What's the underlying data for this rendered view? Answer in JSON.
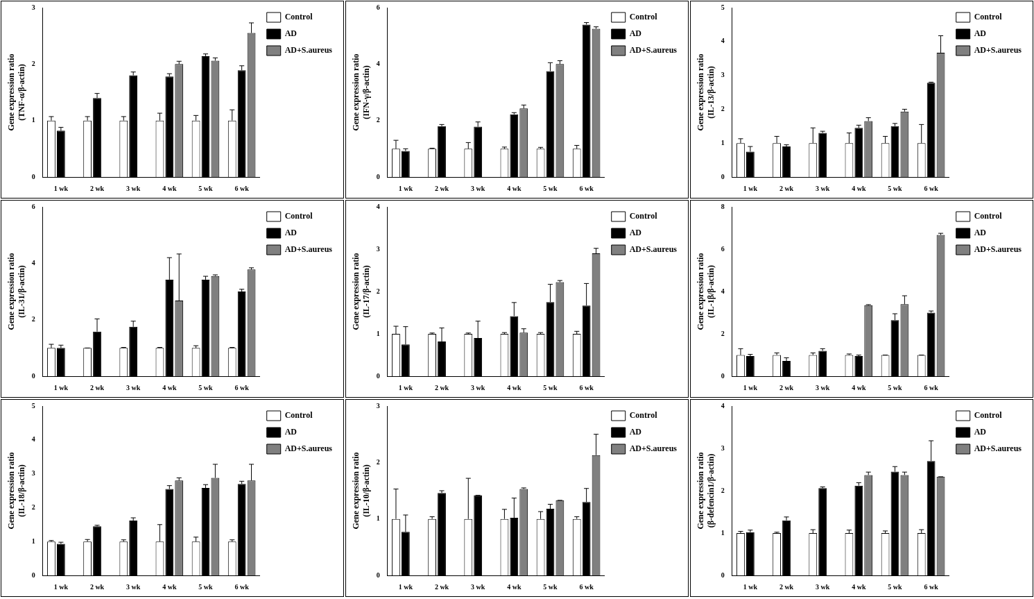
{
  "chart_data": [
    {
      "type": "bar",
      "y_label": [
        "Gene expression ratio",
        "(TNF-α/β-actin)"
      ],
      "categories": [
        "1 wk",
        "2 wk",
        "3 wk",
        "4 wk",
        "5 wk",
        "6 wk"
      ],
      "series": [
        {
          "name": "Control",
          "color": "#ffffff",
          "values": [
            1,
            1,
            1,
            1,
            1,
            1
          ],
          "errors": [
            0.07,
            0.07,
            0.07,
            0.13,
            0.09,
            0.19
          ]
        },
        {
          "name": "AD",
          "color": "#000000",
          "values": [
            0.82,
            1.4,
            1.8,
            1.78,
            2.14,
            1.89
          ],
          "errors": [
            0.06,
            0.08,
            0.06,
            0.05,
            0.04,
            0.08
          ]
        },
        {
          "name": "AD+S.aureus",
          "color": "#808080",
          "values": [
            null,
            null,
            null,
            2.0,
            2.06,
            2.55
          ],
          "errors": [
            null,
            null,
            null,
            0.05,
            0.05,
            0.18
          ]
        }
      ],
      "ylim": [
        0,
        3
      ],
      "yticks": [
        0,
        1,
        2,
        3
      ],
      "legend": "upper right",
      "grid": false
    },
    {
      "type": "bar",
      "y_label": [
        "Gene expression ratio",
        "(IFN-γ/β-actin)"
      ],
      "categories": [
        "1 wk",
        "2 wk",
        "3 wk",
        "4 wk",
        "5 wk",
        "6 wk"
      ],
      "series": [
        {
          "name": "Control",
          "color": "#ffffff",
          "values": [
            1,
            1,
            1,
            1,
            1,
            1
          ],
          "errors": [
            0.3,
            0.02,
            0.22,
            0.06,
            0.05,
            0.12
          ]
        },
        {
          "name": "AD",
          "color": "#000000",
          "values": [
            0.92,
            1.8,
            1.78,
            2.22,
            3.75,
            5.4
          ],
          "errors": [
            0.08,
            0.06,
            0.17,
            0.06,
            0.3,
            0.07
          ]
        },
        {
          "name": "AD+S.aureus",
          "color": "#808080",
          "values": [
            null,
            null,
            null,
            2.43,
            4.0,
            5.25
          ],
          "errors": [
            null,
            null,
            null,
            0.12,
            0.12,
            0.07
          ]
        }
      ],
      "ylim": [
        0,
        6
      ],
      "yticks": [
        0,
        2,
        4,
        6
      ],
      "legend": "upper right",
      "grid": false
    },
    {
      "type": "bar",
      "y_label": [
        "Gene expression ratio",
        "(IL-13/β-actin)"
      ],
      "categories": [
        "1 wk",
        "2 wk",
        "3 wk",
        "4 wk",
        "5 wk",
        "6 wk"
      ],
      "series": [
        {
          "name": "Control",
          "color": "#ffffff",
          "values": [
            1,
            1,
            1,
            1,
            1,
            1
          ],
          "errors": [
            0.13,
            0.2,
            0.45,
            0.3,
            0.2,
            0.55
          ]
        },
        {
          "name": "AD",
          "color": "#000000",
          "values": [
            0.75,
            0.9,
            1.3,
            1.45,
            1.5,
            2.78
          ],
          "errors": [
            0.15,
            0.05,
            0.05,
            0.08,
            0.08,
            0.02
          ]
        },
        {
          "name": "AD+S.aureus",
          "color": "#808080",
          "values": [
            null,
            null,
            null,
            1.65,
            1.93,
            3.67
          ],
          "errors": [
            null,
            null,
            null,
            0.1,
            0.07,
            0.5
          ]
        }
      ],
      "ylim": [
        0,
        5
      ],
      "yticks": [
        0,
        1,
        2,
        3,
        4,
        5
      ],
      "legend": "upper right",
      "grid": false
    },
    {
      "type": "bar",
      "y_label": [
        "Gene expression ratio",
        "(IL-31/β-actin)"
      ],
      "categories": [
        "1 wk",
        "2 wk",
        "3 wk",
        "4 wk",
        "5 wk",
        "6 wk"
      ],
      "series": [
        {
          "name": "Control",
          "color": "#ffffff",
          "values": [
            1,
            1,
            1,
            1,
            1,
            1
          ],
          "errors": [
            0.13,
            0.0,
            0.02,
            0.02,
            0.08,
            0.02
          ]
        },
        {
          "name": "AD",
          "color": "#000000",
          "values": [
            1.0,
            1.58,
            1.75,
            3.42,
            3.42,
            3.0
          ],
          "errors": [
            0.1,
            0.45,
            0.2,
            0.78,
            0.12,
            0.08
          ]
        },
        {
          "name": "AD+S.aureus",
          "color": "#808080",
          "values": [
            null,
            null,
            null,
            2.68,
            3.55,
            3.78
          ],
          "errors": [
            null,
            null,
            null,
            1.65,
            0.04,
            0.06
          ]
        }
      ],
      "ylim": [
        0,
        6
      ],
      "yticks": [
        0,
        2,
        4,
        6
      ],
      "legend": "upper right",
      "grid": false
    },
    {
      "type": "bar",
      "y_label": [
        "Gene expression ratio",
        "(IL-17/β-actin)"
      ],
      "categories": [
        "1 wk",
        "2 wk",
        "3 wk",
        "4 wk",
        "5 wk",
        "6 wk"
      ],
      "series": [
        {
          "name": "Control",
          "color": "#ffffff",
          "values": [
            1,
            1,
            1,
            1,
            1,
            1
          ],
          "errors": [
            0.18,
            0.02,
            0.02,
            0.03,
            0.03,
            0.06
          ]
        },
        {
          "name": "AD",
          "color": "#000000",
          "values": [
            0.75,
            0.82,
            0.9,
            1.42,
            1.75,
            1.67
          ],
          "errors": [
            0.42,
            0.32,
            0.4,
            0.32,
            0.42,
            0.52
          ]
        },
        {
          "name": "AD+S.aureus",
          "color": "#808080",
          "values": [
            null,
            null,
            null,
            1.03,
            2.22,
            2.9
          ],
          "errors": [
            null,
            null,
            null,
            0.09,
            0.04,
            0.12
          ]
        }
      ],
      "ylim": [
        0,
        4
      ],
      "yticks": [
        0,
        1,
        2,
        3,
        4
      ],
      "legend": "upper right",
      "grid": false
    },
    {
      "type": "bar",
      "y_label": [
        "Gene expression ratio",
        "(IL-1β/β-actin)"
      ],
      "categories": [
        "1 wk",
        "2 wk",
        "3 wk",
        "4 wk",
        "5 wk",
        "6 wk"
      ],
      "series": [
        {
          "name": "Control",
          "color": "#ffffff",
          "values": [
            1,
            1,
            1,
            1,
            1,
            1
          ],
          "errors": [
            0.3,
            0.1,
            0.1,
            0.05,
            0.0,
            0.0
          ]
        },
        {
          "name": "AD",
          "color": "#000000",
          "values": [
            0.95,
            0.72,
            1.2,
            0.95,
            2.65,
            3.0
          ],
          "errors": [
            0.08,
            0.15,
            0.1,
            0.05,
            0.3,
            0.08
          ]
        },
        {
          "name": "AD+S.aureus",
          "color": "#808080",
          "values": [
            null,
            null,
            null,
            3.35,
            3.4,
            6.67
          ],
          "errors": [
            null,
            null,
            null,
            0.03,
            0.4,
            0.08
          ]
        }
      ],
      "ylim": [
        0,
        8
      ],
      "yticks": [
        0,
        2,
        4,
        6,
        8
      ],
      "legend": "upper right",
      "grid": false
    },
    {
      "type": "bar",
      "y_label": [
        "Gene expression ratio",
        "(IL-18/β-actin)"
      ],
      "categories": [
        "1 wk",
        "2 wk",
        "3 wk",
        "4 wk",
        "5 wk",
        "6 wk"
      ],
      "series": [
        {
          "name": "Control",
          "color": "#ffffff",
          "values": [
            1,
            1,
            1,
            1,
            1,
            1
          ],
          "errors": [
            0.03,
            0.06,
            0.05,
            0.5,
            0.13,
            0.05
          ]
        },
        {
          "name": "AD",
          "color": "#000000",
          "values": [
            0.93,
            1.45,
            1.62,
            2.55,
            2.58,
            2.7
          ],
          "errors": [
            0.05,
            0.03,
            0.08,
            0.1,
            0.1,
            0.08
          ]
        },
        {
          "name": "AD+S.aureus",
          "color": "#808080",
          "values": [
            null,
            null,
            null,
            2.8,
            2.88,
            2.8
          ],
          "errors": [
            null,
            null,
            null,
            0.08,
            0.4,
            0.48
          ]
        }
      ],
      "ylim": [
        0,
        5
      ],
      "yticks": [
        0,
        1,
        2,
        3,
        4,
        5
      ],
      "legend": "upper right",
      "grid": false
    },
    {
      "type": "bar",
      "y_label": [
        "Gene expression ratio",
        "(IL-10/β-actin)"
      ],
      "categories": [
        "1 wk",
        "2 wk",
        "3 wk",
        "4 wk",
        "5 wk",
        "6 wk"
      ],
      "series": [
        {
          "name": "Control",
          "color": "#ffffff",
          "values": [
            1,
            1,
            1,
            1,
            1,
            1
          ],
          "errors": [
            0.53,
            0.04,
            0.72,
            0.17,
            0.13,
            0.04
          ]
        },
        {
          "name": "AD",
          "color": "#000000",
          "values": [
            0.77,
            1.46,
            1.42,
            1.02,
            1.18,
            1.3
          ],
          "errors": [
            0.3,
            0.04,
            0.0,
            0.35,
            0.08,
            0.24
          ]
        },
        {
          "name": "AD+S.aureus",
          "color": "#808080",
          "values": [
            null,
            null,
            null,
            1.53,
            1.33,
            2.13
          ],
          "errors": [
            null,
            null,
            null,
            0.02,
            0.0,
            0.37
          ]
        }
      ],
      "ylim": [
        0,
        3
      ],
      "yticks": [
        0,
        1,
        2,
        3
      ],
      "legend": "upper right",
      "grid": false
    },
    {
      "type": "bar",
      "y_label": [
        "Gene expression ratio",
        "(β-defencin1/β-actin)"
      ],
      "categories": [
        "1 wk",
        "2 wk",
        "3 wk",
        "4 wk",
        "5 wk",
        "6 wk"
      ],
      "series": [
        {
          "name": "Control",
          "color": "#ffffff",
          "values": [
            1,
            1,
            1,
            1,
            1,
            1
          ],
          "errors": [
            0.04,
            0.02,
            0.08,
            0.07,
            0.05,
            0.08
          ]
        },
        {
          "name": "AD",
          "color": "#000000",
          "values": [
            1.02,
            1.3,
            2.06,
            2.12,
            2.45,
            2.7
          ],
          "errors": [
            0.05,
            0.08,
            0.03,
            0.07,
            0.12,
            0.48
          ]
        },
        {
          "name": "AD+S.aureus",
          "color": "#808080",
          "values": [
            null,
            null,
            null,
            2.37,
            2.37,
            2.33
          ],
          "errors": [
            null,
            null,
            null,
            0.07,
            0.07,
            0.0
          ]
        }
      ],
      "ylim": [
        0,
        4
      ],
      "yticks": [
        0,
        1,
        2,
        3,
        4
      ],
      "legend": "upper right",
      "grid": false
    }
  ]
}
